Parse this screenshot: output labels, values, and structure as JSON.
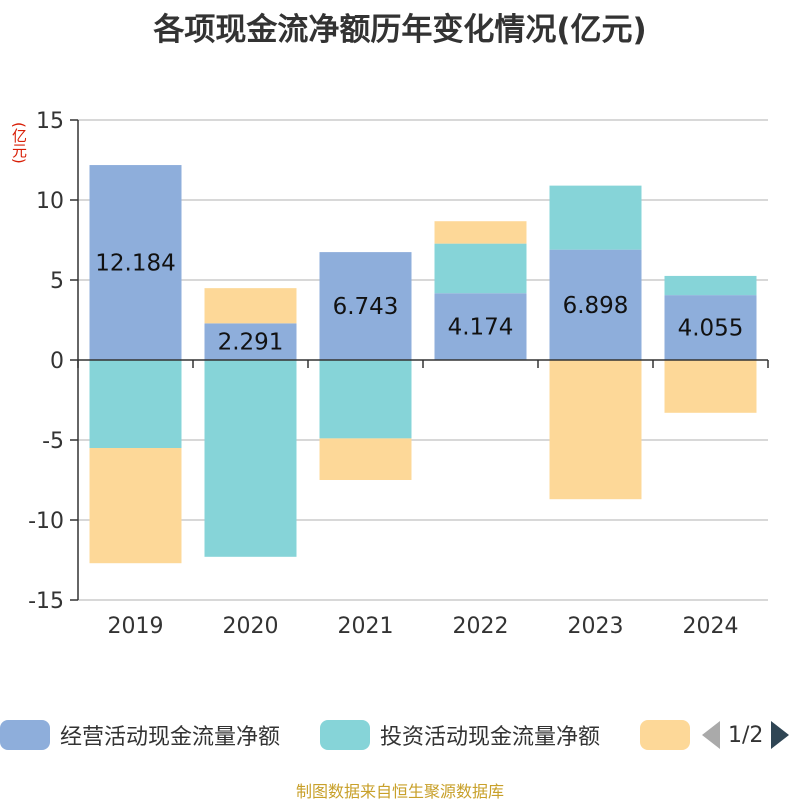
{
  "title": "各项现金流净额历年变化情况(亿元)",
  "unit_label": "(亿元)",
  "footer": "制图数据来自恒生聚源数据库",
  "legend": {
    "items": [
      {
        "label": "经营活动现金流量净额",
        "color": "#8eaedb"
      },
      {
        "label": "投资活动现金流量净额",
        "color": "#86d4d8"
      },
      {
        "label": "",
        "color": "#fdd898"
      }
    ],
    "page_text": "1/2"
  },
  "chart_data": {
    "type": "bar",
    "stacked": true,
    "categories": [
      "2019",
      "2020",
      "2021",
      "2022",
      "2023",
      "2024"
    ],
    "ylim": [
      -15,
      15
    ],
    "yticks": [
      15,
      10,
      5,
      0,
      -5,
      -10,
      -15
    ],
    "grid": true,
    "legend_position": "bottom",
    "series": [
      {
        "name": "经营活动现金流量净额",
        "color": "#8eaedb",
        "values": [
          12.184,
          2.291,
          6.743,
          4.174,
          6.898,
          4.055
        ],
        "labels": [
          "12.184",
          "2.291",
          "6.743",
          "4.174",
          "6.898",
          "4.055"
        ]
      },
      {
        "name": "投资活动现金流量净额",
        "color": "#86d4d8",
        "values": [
          -5.5,
          -12.3,
          -4.9,
          3.1,
          4.0,
          1.2
        ]
      },
      {
        "color": "#fdd898",
        "values": [
          -7.2,
          2.2,
          -2.6,
          1.4,
          -8.7,
          -3.3
        ]
      }
    ]
  }
}
